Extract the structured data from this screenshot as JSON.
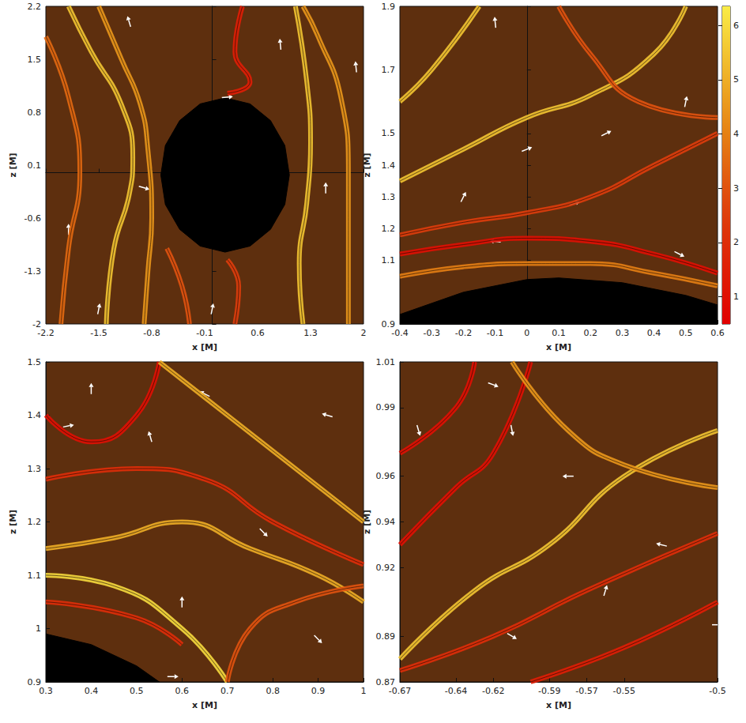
{
  "chart_data": [
    {
      "type": "streamline",
      "xlabel": "x [M]",
      "ylabel": "z [M]",
      "xlim": [
        -2.2,
        2
      ],
      "ylim": [
        -2,
        2.2
      ],
      "xticks": [
        -2.2,
        -1.5,
        -0.8,
        -0.1,
        0.6,
        1.3,
        2
      ],
      "yticks": [
        -2,
        -1.3,
        -0.6,
        0.1,
        0.8,
        1.5,
        2.2
      ],
      "horizon": {
        "x": [
          1.02,
          0.96,
          0.77,
          0.5,
          0.17,
          -0.16,
          -0.43,
          -0.62,
          -0.68,
          -0.62,
          -0.43,
          -0.16,
          0.17,
          0.5,
          0.77,
          0.96
        ],
        "z": [
          -0.03,
          0.36,
          0.69,
          0.91,
          0.99,
          0.91,
          0.69,
          0.36,
          -0.03,
          -0.42,
          -0.75,
          -0.97,
          -1.05,
          -0.97,
          -0.75,
          -0.42
        ]
      },
      "field_lines": [
        {
          "value": 5.5,
          "x": [
            -1.4,
            -1.3,
            -1.1,
            -1.05,
            -1.2,
            -1.6,
            -1.9
          ],
          "z": [
            -2,
            -1.0,
            -0.3,
            0.2,
            0.9,
            1.6,
            2.2
          ]
        },
        {
          "value": 3.5,
          "x": [
            -2.0,
            -1.9,
            -1.75,
            -1.9,
            -2.2
          ],
          "z": [
            -2,
            -1,
            0,
            1,
            1.8
          ]
        },
        {
          "value": 4.5,
          "x": [
            -0.9,
            -0.85,
            -0.8,
            -0.85,
            -0.95,
            -1.2,
            -1.5
          ],
          "z": [
            -2,
            -1.3,
            -0.6,
            0.3,
            0.9,
            1.5,
            2.2
          ]
        },
        {
          "value": 5.5,
          "x": [
            1.2,
            1.15,
            1.25,
            1.3,
            1.25,
            1.1
          ],
          "z": [
            -2,
            -1.2,
            -0.4,
            0.4,
            1.2,
            2.2
          ]
        },
        {
          "value": 4.5,
          "x": [
            1.8,
            1.8,
            1.8,
            1.7,
            1.4,
            1.2
          ],
          "z": [
            -2,
            -1,
            0,
            1,
            1.8,
            2.2
          ]
        },
        {
          "value": 1.5,
          "x": [
            0.4,
            0.3,
            0.5,
            0.2
          ],
          "z": [
            2.2,
            1.6,
            1.2,
            1.05
          ]
        },
        {
          "value": 2.5,
          "x": [
            0.3,
            0.35,
            0.2
          ],
          "z": [
            -2,
            -1.5,
            -1.15
          ]
        },
        {
          "value": 3,
          "x": [
            -0.3,
            -0.4,
            -0.6
          ],
          "z": [
            -2,
            -1.5,
            -1.0
          ]
        }
      ],
      "arrows": {
        "x": [
          -1.9,
          -1.1,
          0.2,
          0.9,
          1.5,
          1.9,
          -1.5,
          0.0,
          -0.9
        ],
        "z": [
          -0.75,
          2.0,
          1.0,
          1.7,
          -0.2,
          1.4,
          -1.8,
          -1.8,
          -0.2
        ],
        "dx": [
          0,
          -0.3,
          1,
          -0.1,
          0,
          -0.1,
          0.2,
          0.2,
          1
        ],
        "dz": [
          1,
          1,
          0.1,
          1,
          1,
          1,
          1,
          1,
          -0.3
        ]
      }
    },
    {
      "type": "streamline",
      "xlabel": "x [M]",
      "ylabel": "z [M]",
      "xlim": [
        -0.4,
        0.6
      ],
      "ylim": [
        0.9,
        1.9
      ],
      "xticks": [
        -0.4,
        -0.3,
        -0.2,
        -0.1,
        0,
        0.1,
        0.2,
        0.3,
        0.4,
        0.5,
        0.6
      ],
      "yticks": [
        0.9,
        1.1,
        1.2,
        1.3,
        1.4,
        1.5,
        1.7,
        1.9
      ],
      "horizon": {
        "x": [
          -0.4,
          -0.2,
          0,
          0.1,
          0.3,
          0.5,
          0.6,
          0.6,
          -0.4
        ],
        "z": [
          0.93,
          1.0,
          1.04,
          1.045,
          1.03,
          0.99,
          0.96,
          0.9,
          0.9
        ]
      },
      "field_lines": [
        {
          "value": 5.5,
          "x": [
            -0.4,
            -0.2,
            0,
            0.2,
            0.4,
            0.5
          ],
          "z": [
            1.35,
            1.45,
            1.55,
            1.62,
            1.75,
            1.9
          ]
        },
        {
          "value": 5.5,
          "x": [
            -0.4,
            -0.3,
            -0.15
          ],
          "z": [
            1.6,
            1.7,
            1.9
          ]
        },
        {
          "value": 2.5,
          "x": [
            -0.4,
            -0.2,
            0,
            0.2,
            0.4,
            0.6
          ],
          "z": [
            1.18,
            1.22,
            1.25,
            1.3,
            1.4,
            1.5
          ]
        },
        {
          "value": 1,
          "x": [
            -0.4,
            -0.2,
            0,
            0.2,
            0.4,
            0.6
          ],
          "z": [
            1.12,
            1.15,
            1.17,
            1.16,
            1.12,
            1.06
          ]
        },
        {
          "value": 4,
          "x": [
            -0.4,
            -0.2,
            0,
            0.2,
            0.4,
            0.6
          ],
          "z": [
            1.05,
            1.08,
            1.09,
            1.09,
            1.06,
            1.02
          ]
        },
        {
          "value": 3,
          "x": [
            0.1,
            0.2,
            0.35,
            0.6
          ],
          "z": [
            1.9,
            1.75,
            1.6,
            1.55
          ]
        }
      ],
      "arrows": {
        "x": [
          -0.1,
          0.0,
          0.25,
          0.5,
          -0.2,
          -0.1,
          0.48,
          0.15
        ],
        "z": [
          1.85,
          1.45,
          1.5,
          1.6,
          1.3,
          1.16,
          1.12,
          1.28
        ],
        "dx": [
          -0.1,
          1,
          1,
          0.2,
          0.5,
          -1,
          1,
          1
        ],
        "dz": [
          1,
          0.4,
          0.5,
          1,
          1,
          0.1,
          -0.5,
          0.3
        ]
      },
      "colorbar": {
        "range": [
          0.5,
          6.35
        ],
        "ticks": [
          1,
          2,
          3,
          4,
          5,
          6
        ]
      }
    },
    {
      "type": "streamline",
      "xlabel": "x [M]",
      "ylabel": "z [M]",
      "xlim": [
        0.3,
        1
      ],
      "ylim": [
        0.9,
        1.5
      ],
      "xticks": [
        0.3,
        0.4,
        0.5,
        0.6,
        0.7,
        0.8,
        0.9,
        1
      ],
      "yticks": [
        0.9,
        1,
        1.1,
        1.2,
        1.3,
        1.4,
        1.5
      ],
      "horizon": {
        "x": [
          0.3,
          0.4,
          0.5,
          0.55,
          0.3
        ],
        "z": [
          0.99,
          0.97,
          0.93,
          0.9,
          0.9
        ]
      },
      "field_lines": [
        {
          "value": 5,
          "x": [
            0.3,
            0.45,
            0.6,
            0.75,
            0.9,
            1.0
          ],
          "z": [
            1.15,
            1.17,
            1.2,
            1.15,
            1.1,
            1.05
          ]
        },
        {
          "value": 1,
          "x": [
            0.3,
            0.4,
            0.5,
            0.55
          ],
          "z": [
            1.4,
            1.35,
            1.4,
            1.5
          ]
        },
        {
          "value": 2,
          "x": [
            0.3,
            0.5,
            0.65,
            0.8,
            1.0
          ],
          "z": [
            1.28,
            1.3,
            1.28,
            1.2,
            1.12
          ]
        },
        {
          "value": 5,
          "x": [
            0.55,
            0.7,
            0.85,
            1.0
          ],
          "z": [
            1.5,
            1.4,
            1.3,
            1.2
          ]
        },
        {
          "value": 6,
          "x": [
            0.7,
            0.6,
            0.45,
            0.3
          ],
          "z": [
            0.9,
            1.0,
            1.08,
            1.1
          ]
        },
        {
          "value": 3,
          "x": [
            0.7,
            0.75,
            0.85,
            1.0
          ],
          "z": [
            0.9,
            1.0,
            1.05,
            1.08
          ]
        },
        {
          "value": 2,
          "x": [
            0.3,
            0.5,
            0.6
          ],
          "z": [
            1.05,
            1.02,
            0.97
          ]
        }
      ],
      "arrows": {
        "x": [
          0.4,
          0.53,
          0.35,
          0.65,
          0.78,
          0.9,
          0.6,
          0.58,
          0.92
        ],
        "z": [
          1.45,
          1.36,
          1.38,
          1.44,
          1.18,
          0.98,
          1.05,
          0.91,
          1.4
        ],
        "dx": [
          0,
          -0.3,
          1,
          -1,
          1,
          1,
          0,
          1,
          -1
        ],
        "dz": [
          1,
          1,
          0.2,
          0.5,
          -1,
          -1,
          1,
          0,
          0.3
        ]
      }
    },
    {
      "type": "streamline",
      "xlabel": "x [M]",
      "ylabel": "z [M]",
      "xlim": [
        -0.67,
        -0.5
      ],
      "ylim": [
        0.87,
        1.01
      ],
      "xticks": [
        -0.67,
        -0.64,
        -0.62,
        -0.59,
        -0.57,
        -0.55,
        -0.5
      ],
      "yticks": [
        0.87,
        0.89,
        0.92,
        0.94,
        0.96,
        0.99,
        1.01
      ],
      "field_lines": [
        {
          "value": 1,
          "x": [
            -0.67,
            -0.64,
            -0.62,
            -0.6
          ],
          "z": [
            0.93,
            0.955,
            0.97,
            1.01
          ]
        },
        {
          "value": 5.5,
          "x": [
            -0.67,
            -0.63,
            -0.59,
            -0.55,
            -0.5
          ],
          "z": [
            0.88,
            0.91,
            0.93,
            0.96,
            0.98
          ]
        },
        {
          "value": 4.5,
          "x": [
            -0.61,
            -0.58,
            -0.55,
            -0.5
          ],
          "z": [
            1.01,
            0.98,
            0.965,
            0.955
          ]
        },
        {
          "value": 2,
          "x": [
            -0.67,
            -0.62,
            -0.57,
            -0.5
          ],
          "z": [
            0.875,
            0.89,
            0.91,
            0.935
          ]
        },
        {
          "value": 1.5,
          "x": [
            -0.6,
            -0.55,
            -0.5
          ],
          "z": [
            0.87,
            0.885,
            0.905
          ]
        },
        {
          "value": 1,
          "x": [
            -0.67,
            -0.64,
            -0.63
          ],
          "z": [
            0.97,
            0.99,
            1.01
          ]
        }
      ],
      "arrows": {
        "x": [
          -0.62,
          -0.61,
          -0.66,
          -0.58,
          -0.53,
          -0.61,
          -0.56,
          -0.5
        ],
        "z": [
          1.0,
          0.98,
          0.98,
          0.96,
          0.93,
          0.89,
          0.91,
          0.895
        ],
        "dx": [
          0.8,
          0.2,
          0.3,
          -1,
          -0.8,
          1,
          0.3,
          1
        ],
        "dz": [
          -0.3,
          -1,
          -1,
          0,
          0.2,
          -0.6,
          1,
          0
        ]
      }
    }
  ]
}
